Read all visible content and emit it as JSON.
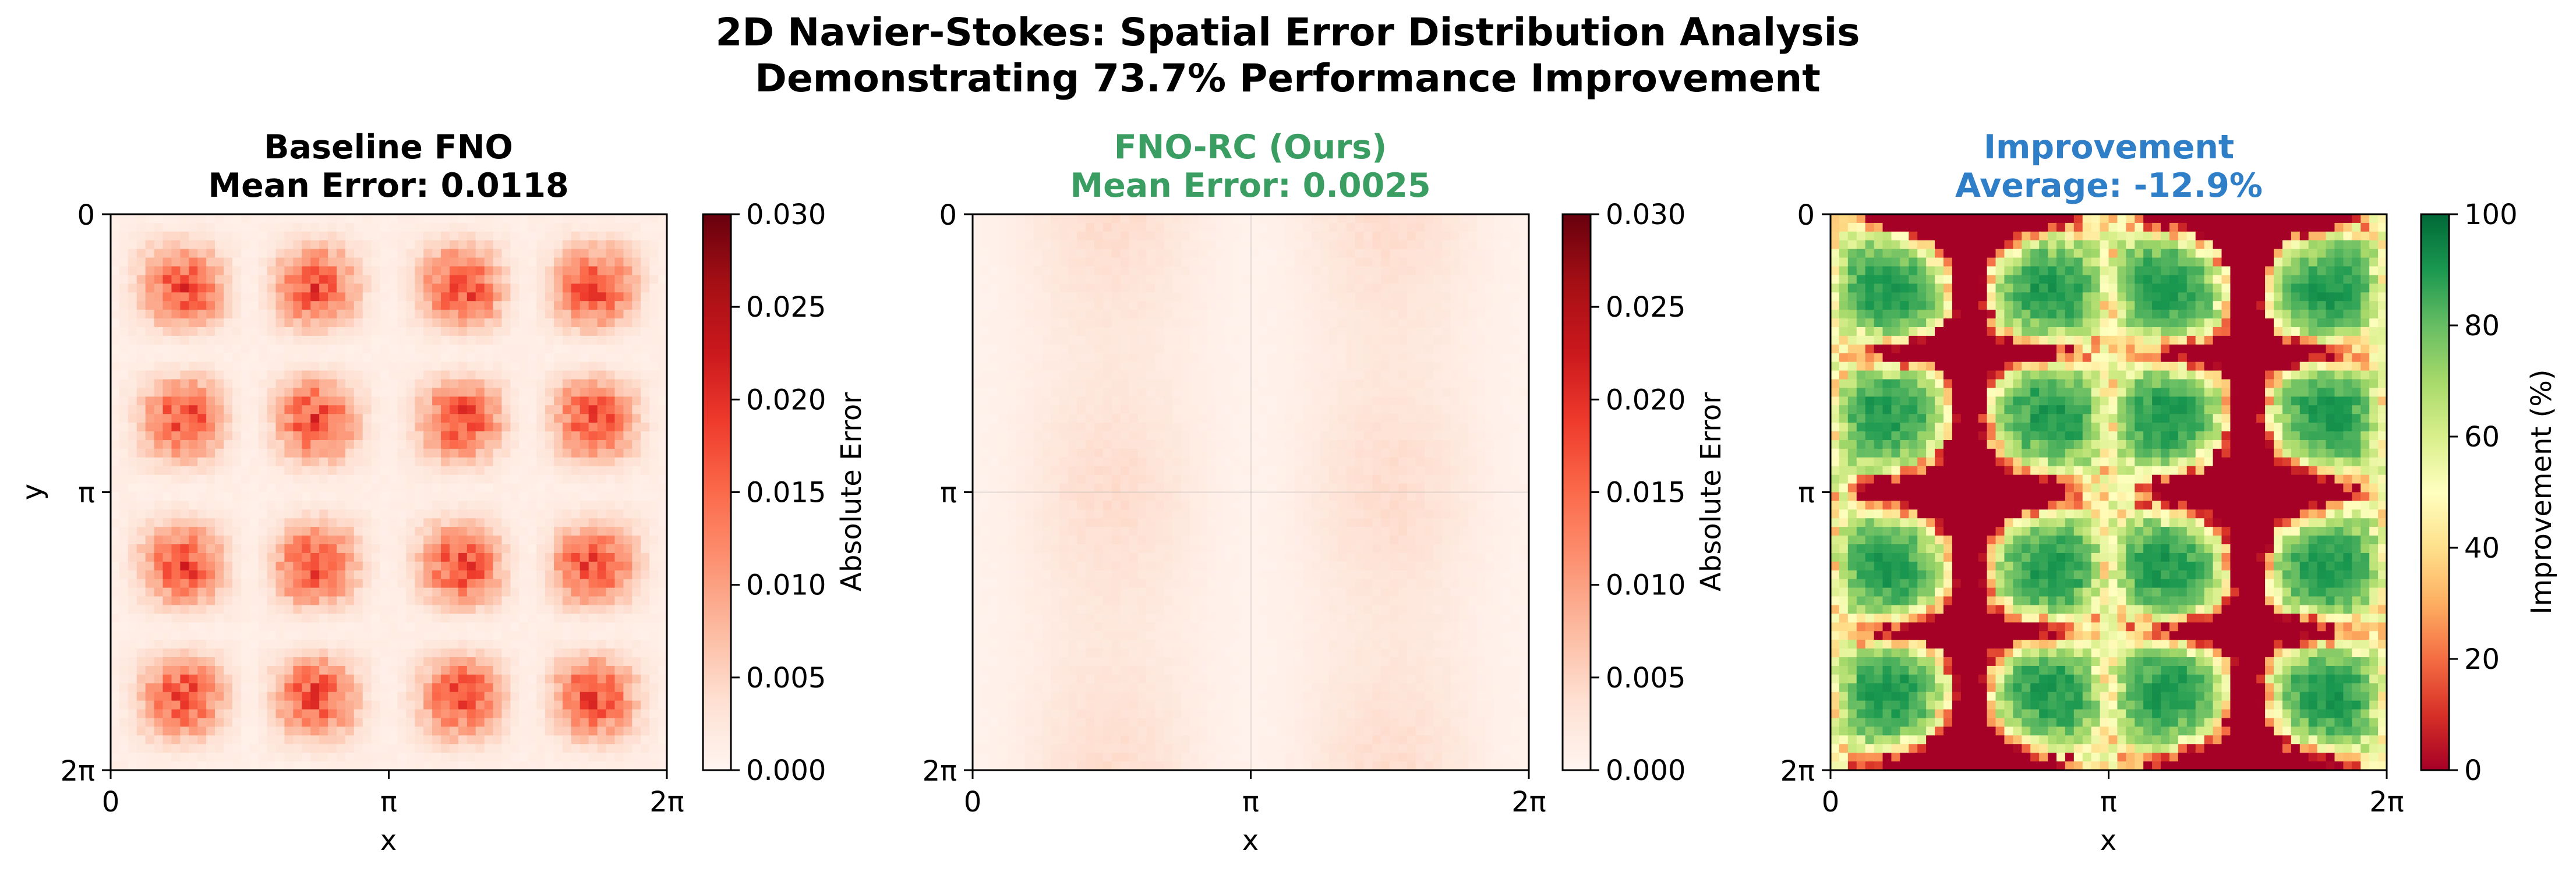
{
  "figure": {
    "title_line1": "2D Navier-Stokes: Spatial Error Distribution Analysis",
    "title_line2": "Demonstrating 73.7% Performance Improvement"
  },
  "chart_data": [
    {
      "type": "heatmap",
      "title_line1": "Baseline FNO",
      "title_line2": "Mean Error: 0.0118",
      "title_color": "#000000",
      "mean_error": 0.0118,
      "xlabel": "x",
      "ylabel": "y",
      "x_ticks": [
        "0",
        "π",
        "2π"
      ],
      "y_ticks": [
        "0",
        "π",
        "2π"
      ],
      "xlim": [
        "0",
        "2π"
      ],
      "ylim": [
        "2π",
        "0"
      ],
      "grid_resolution": [
        64,
        64
      ],
      "pattern": "4x4 lattice of error blobs; strongest near (π/2, π/2), (3π/2, π/2), (π/2, 3π/2), (3π/2, 3π/2), plus weaker intermediate blobs and faint border rows",
      "colormap": "Reds",
      "colorbar": {
        "label": "Absolute Error",
        "vmin": 0.0,
        "vmax": 0.03,
        "ticks": [
          "0.000",
          "0.005",
          "0.010",
          "0.015",
          "0.020",
          "0.025",
          "0.030"
        ]
      }
    },
    {
      "type": "heatmap",
      "title_line1": "FNO-RC (Ours)",
      "title_line2": "Mean Error: 0.0025",
      "title_color": "#3a9d62",
      "mean_error": 0.0025,
      "xlabel": "x",
      "ylabel": "",
      "x_ticks": [
        "0",
        "π",
        "2π"
      ],
      "y_ticks": [
        "0",
        "π",
        "2π"
      ],
      "xlim": [
        "0",
        "2π"
      ],
      "ylim": [
        "2π",
        "0"
      ],
      "grid_resolution": [
        64,
        64
      ],
      "pattern": "smooth low-amplitude 2x2 blobs centred near (π/2, 0), (3π/2, 0), (π/2, π), (3π/2, π), (π/2, 2π), (3π/2, 2π)",
      "grid": true,
      "colormap": "Reds",
      "colorbar": {
        "label": "Absolute Error",
        "vmin": 0.0,
        "vmax": 0.03,
        "ticks": [
          "0.000",
          "0.005",
          "0.010",
          "0.015",
          "0.020",
          "0.025",
          "0.030"
        ]
      }
    },
    {
      "type": "heatmap",
      "title_line1": "Improvement",
      "title_line2": "Average: -12.9%",
      "title_color": "#2f7fc8",
      "average_improvement_pct": -12.9,
      "xlabel": "x",
      "ylabel": "",
      "x_ticks": [
        "0",
        "π",
        "2π"
      ],
      "y_ticks": [
        "0",
        "π",
        "2π"
      ],
      "xlim": [
        "0",
        "2π"
      ],
      "ylim": [
        "2π",
        "0"
      ],
      "grid_resolution": [
        64,
        64
      ],
      "pattern": "green (~90-100%) inside the baseline error blobs, red (clipped at 0%) on the rings between blobs where baseline error is small",
      "colormap": "RdYlGn",
      "colorbar": {
        "label": "Improvement (%)",
        "vmin": 0,
        "vmax": 100,
        "ticks": [
          "0",
          "20",
          "40",
          "60",
          "80",
          "100"
        ]
      }
    }
  ]
}
